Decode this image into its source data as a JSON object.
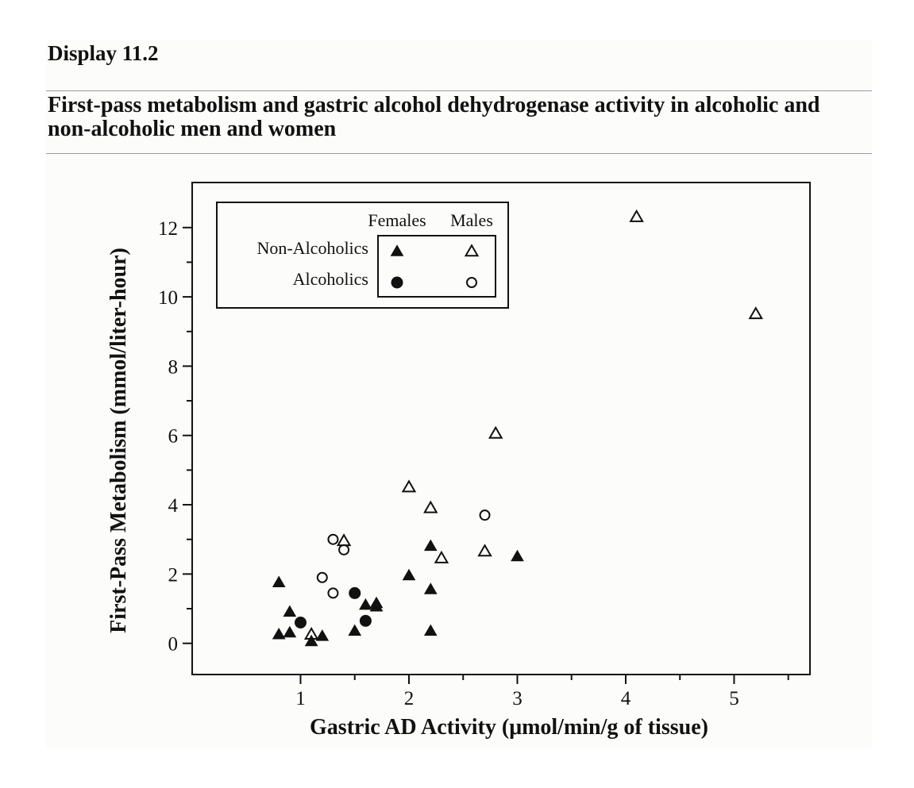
{
  "display_label": "Display 11.2",
  "figure_title": "First-pass metabolism and gastric alcohol dehydrogenase activity in alcoholic and non-alcoholic men and women",
  "chart_data": {
    "type": "scatter",
    "xlabel": "Gastric AD Activity (μmol/min/g of tissue)",
    "ylabel": "First-Pass Metabolism (mmol/liter-hour)",
    "xlim": [
      0,
      5.7
    ],
    "ylim": [
      -0.9,
      13.3
    ],
    "x_ticks": [
      1,
      2,
      3,
      4,
      5
    ],
    "y_ticks": [
      0,
      2,
      4,
      6,
      8,
      10,
      12
    ],
    "x_tick_labels": [
      "1",
      "2",
      "3",
      "4",
      "5"
    ],
    "y_tick_labels": [
      "0",
      "2",
      "4",
      "6",
      "8",
      "10",
      "12"
    ],
    "grid": false,
    "legend": {
      "placement": "top-left",
      "column_headers": [
        "Females",
        "Males"
      ],
      "row_labels": [
        "Non-Alcoholics",
        "Alcoholics"
      ]
    },
    "series": [
      {
        "group": "Non-Alcoholics",
        "sex": "Female",
        "marker": "filled-triangle",
        "points": [
          [
            0.8,
            1.75
          ],
          [
            0.8,
            0.25
          ],
          [
            0.9,
            0.9
          ],
          [
            0.9,
            0.3
          ],
          [
            1.1,
            0.05
          ],
          [
            1.2,
            0.2
          ],
          [
            1.5,
            0.35
          ],
          [
            1.6,
            1.1
          ],
          [
            1.7,
            1.05
          ],
          [
            1.7,
            1.15
          ],
          [
            2.0,
            1.95
          ],
          [
            2.2,
            2.8
          ],
          [
            2.2,
            1.55
          ],
          [
            2.2,
            0.35
          ],
          [
            3.0,
            2.5
          ]
        ]
      },
      {
        "group": "Non-Alcoholics",
        "sex": "Male",
        "marker": "open-triangle",
        "points": [
          [
            1.1,
            0.25
          ],
          [
            1.4,
            2.95
          ],
          [
            2.0,
            4.5
          ],
          [
            2.2,
            3.9
          ],
          [
            2.3,
            2.45
          ],
          [
            2.7,
            2.65
          ],
          [
            2.8,
            6.05
          ],
          [
            4.1,
            12.3
          ],
          [
            5.2,
            9.5
          ]
        ]
      },
      {
        "group": "Alcoholics",
        "sex": "Female",
        "marker": "filled-circle",
        "points": [
          [
            1.0,
            0.6
          ],
          [
            1.5,
            1.45
          ],
          [
            1.6,
            0.65
          ]
        ]
      },
      {
        "group": "Alcoholics",
        "sex": "Male",
        "marker": "open-circle",
        "points": [
          [
            1.2,
            1.9
          ],
          [
            1.3,
            3.0
          ],
          [
            1.3,
            1.45
          ],
          [
            1.4,
            2.7
          ],
          [
            2.7,
            3.7
          ]
        ]
      }
    ]
  }
}
